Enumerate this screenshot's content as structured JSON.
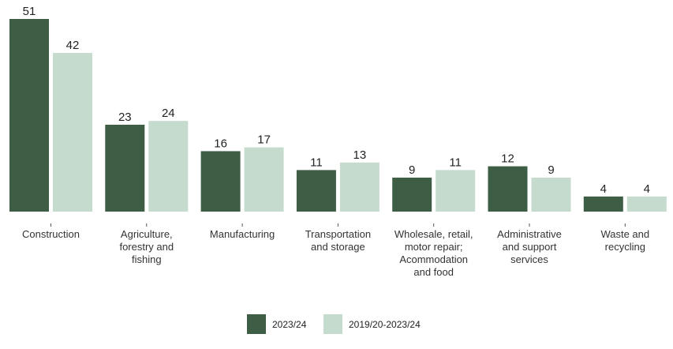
{
  "chart_data": {
    "type": "bar",
    "categories": [
      "Construction",
      "Agriculture, forestry and fishing",
      "Manufacturing",
      "Transportation and storage",
      "Wholesale, retail, motor repair; Acommodation and food",
      "Administrative and support services",
      "Waste and recycling"
    ],
    "series": [
      {
        "name": "2023/24",
        "color": "#3d5e45",
        "values": [
          51,
          23,
          16,
          11,
          9,
          12,
          4
        ]
      },
      {
        "name": "2019/20-2023/24",
        "color": "#c5dbcd",
        "values": [
          42,
          24,
          17,
          13,
          11,
          9,
          4
        ]
      }
    ],
    "legend": "bottom"
  }
}
